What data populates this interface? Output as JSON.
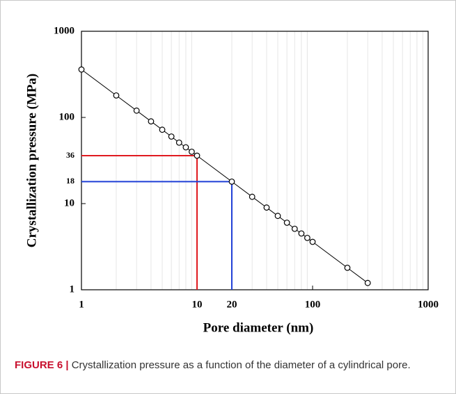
{
  "chart_data": {
    "type": "scatter",
    "log_x": true,
    "log_y": true,
    "grid": true,
    "xlabel": "Pore diameter (nm)",
    "ylabel": "Crystallization pressure (MPa)",
    "x": [
      1,
      2,
      3,
      4,
      5,
      6,
      7,
      8,
      9,
      10,
      20,
      30,
      40,
      50,
      60,
      70,
      80,
      90,
      100,
      200,
      300
    ],
    "values": [
      360,
      180,
      120,
      90,
      72,
      60,
      51,
      45,
      40,
      36,
      18,
      12,
      9,
      7.2,
      6,
      5.1,
      4.5,
      4,
      3.6,
      1.8,
      1.2
    ],
    "color": "#000000",
    "connect": true,
    "xlim": [
      1,
      1000
    ],
    "ylim": [
      1,
      1000
    ],
    "xticks": [
      1,
      10,
      20,
      100,
      1000
    ],
    "yticks": [
      1,
      10,
      100,
      1000
    ],
    "guides": [
      {
        "x": 10,
        "y": 36,
        "color": "#e0191f"
      },
      {
        "x": 20,
        "y": 18,
        "color": "#1f3fd6"
      }
    ]
  },
  "caption": {
    "label": "FIGURE 6 |",
    "text": "Crystallization pressure as a function of the diameter of a cylindrical pore."
  }
}
